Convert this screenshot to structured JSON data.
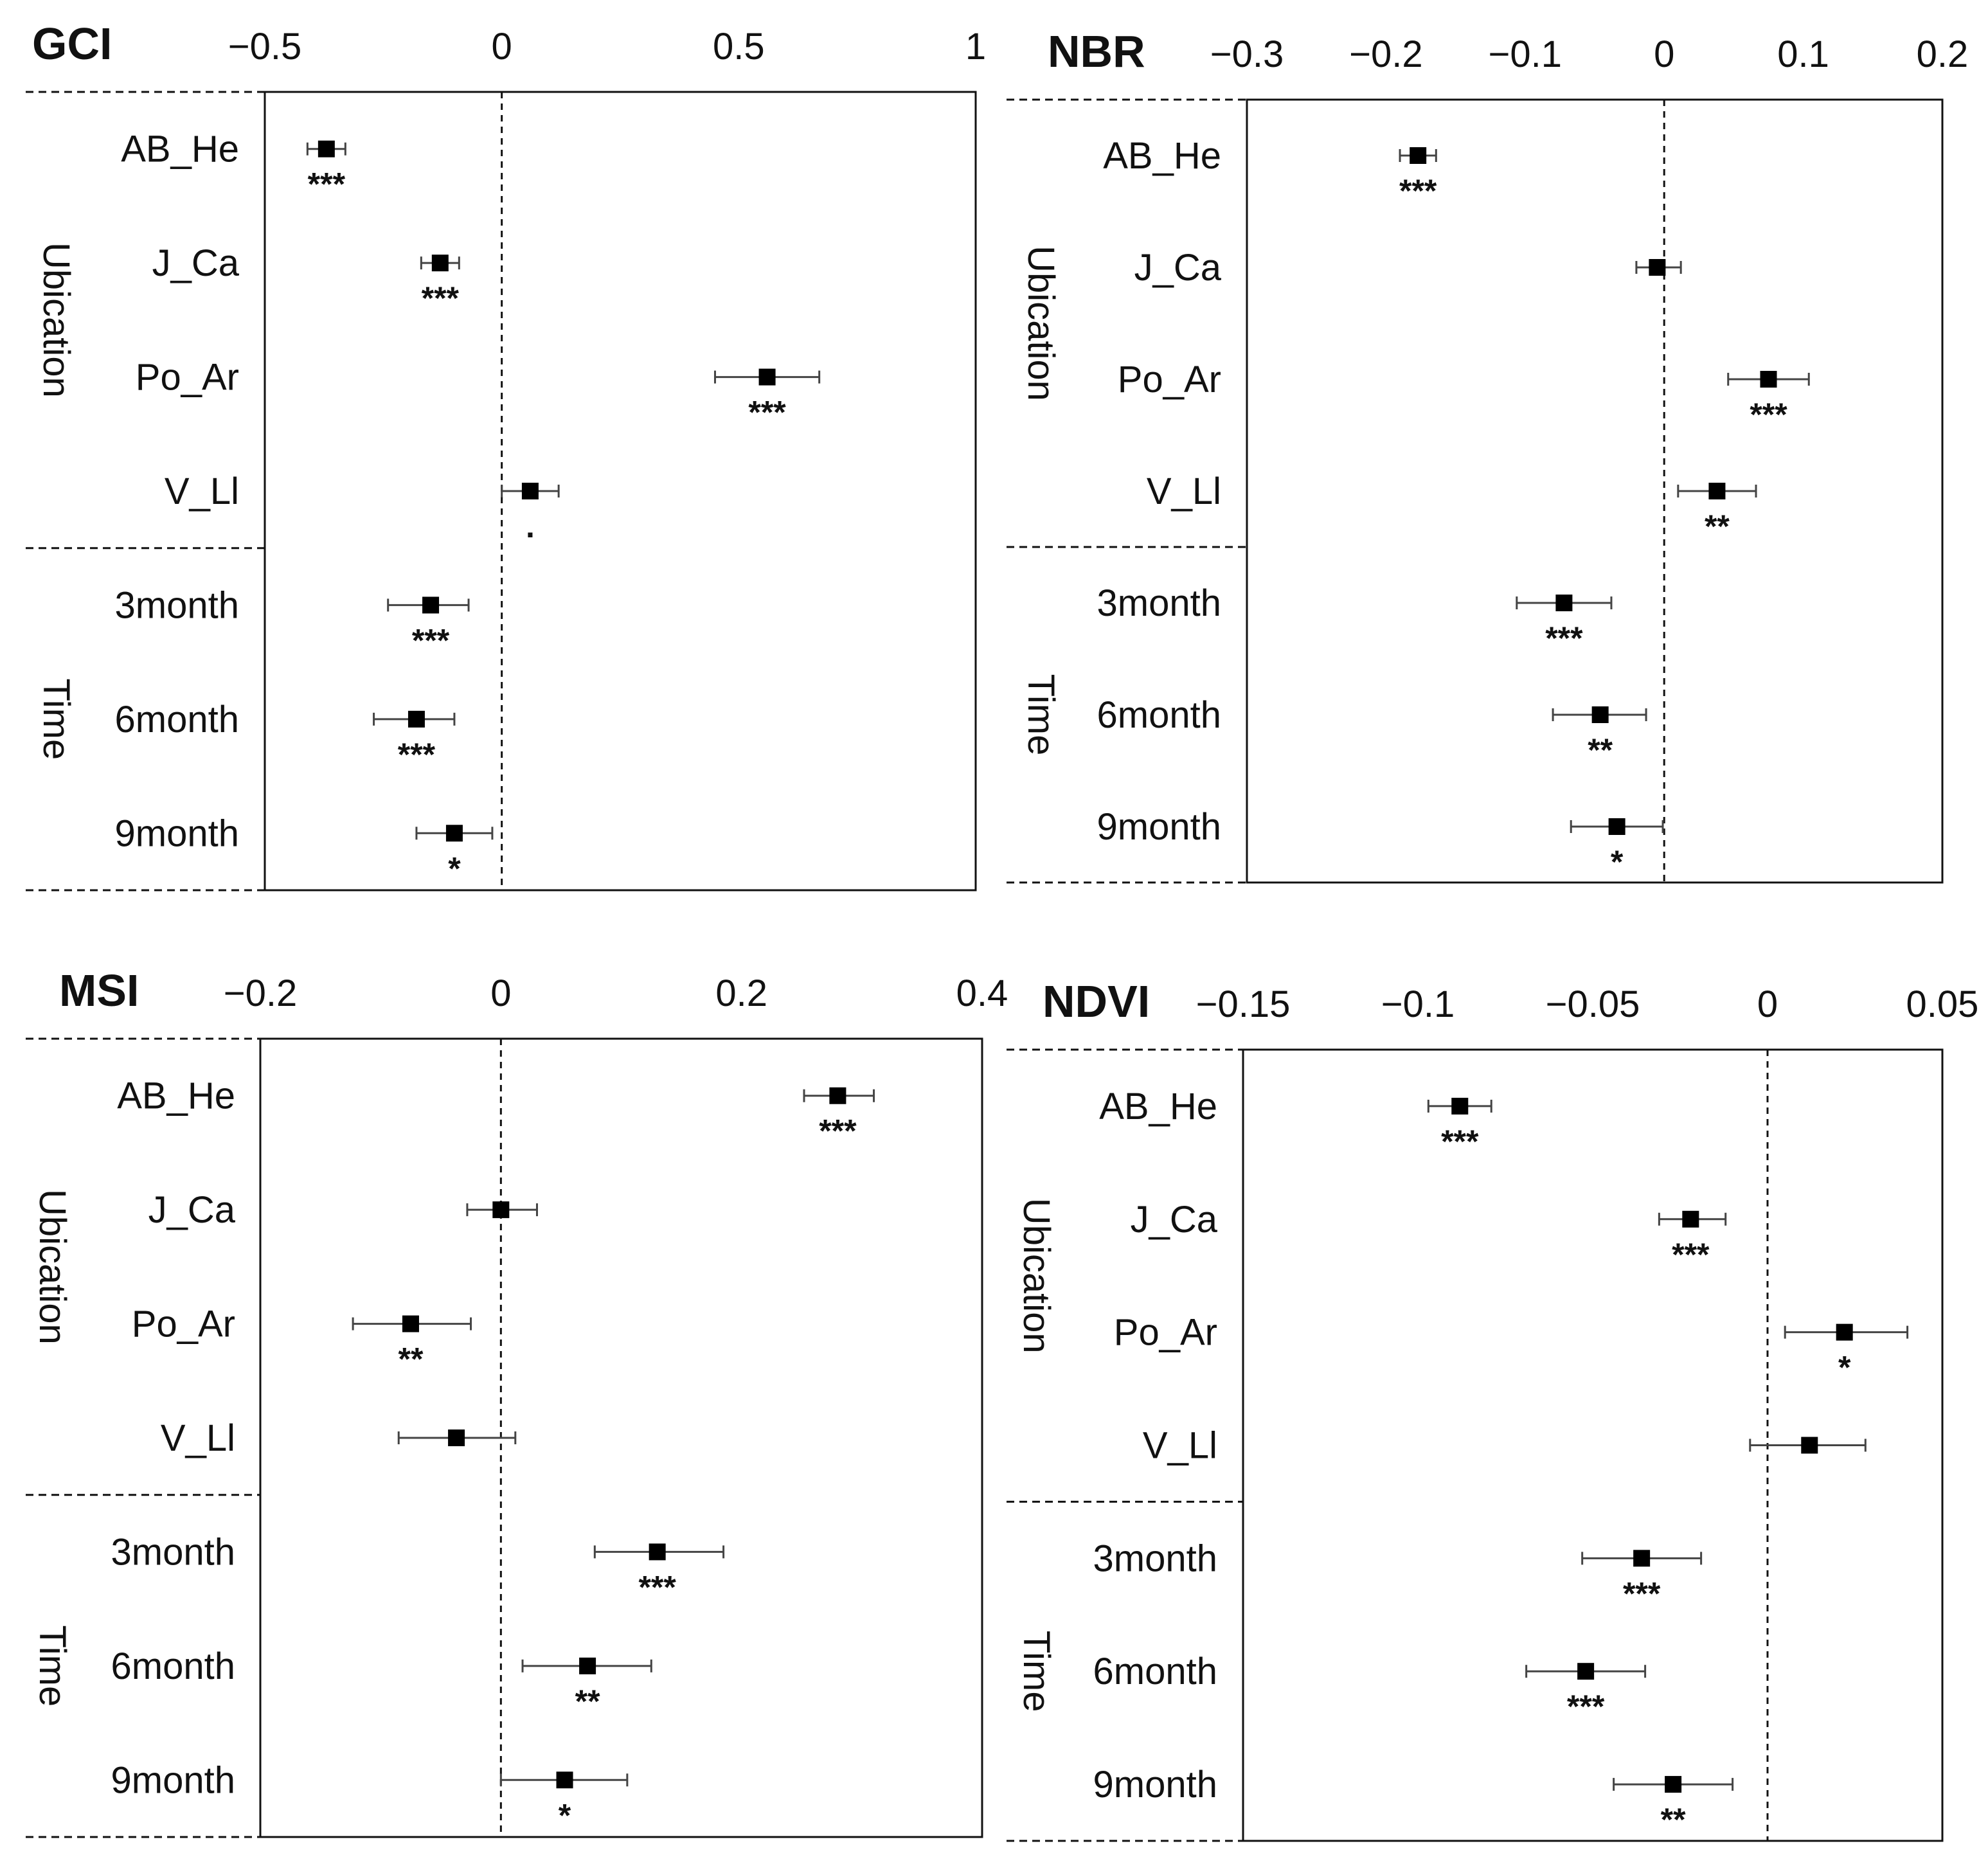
{
  "chart_data": [
    {
      "type": "forest",
      "title": "GCI",
      "xlim": [
        -0.5,
        1
      ],
      "ticks": [
        -0.5,
        0,
        0.5,
        1
      ],
      "tick_labels": [
        "−0.5",
        "0",
        "0.5",
        "1"
      ],
      "groups": [
        {
          "label": "Ubication",
          "count": 4
        },
        {
          "label": "Time",
          "count": 3
        }
      ],
      "categories": [
        "AB_He",
        "J_Ca",
        "Po_Ar",
        "V_Ll",
        "3month",
        "6month",
        "9month"
      ],
      "estimates": [
        -0.37,
        -0.13,
        0.56,
        0.06,
        -0.15,
        -0.18,
        -0.1
      ],
      "lower": [
        -0.41,
        -0.17,
        0.45,
        0.0,
        -0.24,
        -0.27,
        -0.18
      ],
      "upper": [
        -0.33,
        -0.09,
        0.67,
        0.12,
        -0.07,
        -0.1,
        -0.02
      ],
      "significance": [
        "***",
        "***",
        "***",
        ".",
        "***",
        "***",
        "*"
      ]
    },
    {
      "type": "forest",
      "title": "NBR",
      "xlim": [
        -0.3,
        0.2
      ],
      "ticks": [
        -0.3,
        -0.2,
        -0.1,
        0,
        0.1,
        0.2
      ],
      "tick_labels": [
        "−0.3",
        "−0.2",
        "−0.1",
        "0",
        "0.1",
        "0.2"
      ],
      "groups": [
        {
          "label": "Ubication",
          "count": 4
        },
        {
          "label": "Time",
          "count": 3
        }
      ],
      "categories": [
        "AB_He",
        "J_Ca",
        "Po_Ar",
        "V_Ll",
        "3month",
        "6month",
        "9month"
      ],
      "estimates": [
        -0.177,
        -0.005,
        0.075,
        0.038,
        -0.072,
        -0.046,
        -0.034
      ],
      "lower": [
        -0.19,
        -0.02,
        0.046,
        0.01,
        -0.106,
        -0.08,
        -0.067
      ],
      "upper": [
        -0.164,
        0.012,
        0.104,
        0.066,
        -0.038,
        -0.013,
        -0.001
      ],
      "significance": [
        "***",
        "",
        "***",
        "**",
        "***",
        "**",
        "*"
      ]
    },
    {
      "type": "forest",
      "title": "MSI",
      "xlim": [
        -0.2,
        0.4
      ],
      "ticks": [
        -0.2,
        0,
        0.2,
        0.4
      ],
      "tick_labels": [
        "−0.2",
        "0",
        "0.2",
        "0.4"
      ],
      "groups": [
        {
          "label": "Ubication",
          "count": 4
        },
        {
          "label": "Time",
          "count": 3
        }
      ],
      "categories": [
        "AB_He",
        "J_Ca",
        "Po_Ar",
        "V_Ll",
        "3month",
        "6month",
        "9month"
      ],
      "estimates": [
        0.28,
        0.0,
        -0.075,
        -0.037,
        0.13,
        0.072,
        0.053
      ],
      "lower": [
        0.252,
        -0.028,
        -0.123,
        -0.085,
        0.078,
        0.018,
        0.0
      ],
      "upper": [
        0.31,
        0.03,
        -0.025,
        0.012,
        0.185,
        0.125,
        0.105
      ],
      "significance": [
        "***",
        "",
        "**",
        "",
        "***",
        "**",
        "*"
      ]
    },
    {
      "type": "forest",
      "title": "NDVI",
      "xlim": [
        -0.15,
        0.05
      ],
      "ticks": [
        -0.15,
        -0.1,
        -0.05,
        0,
        0.05
      ],
      "tick_labels": [
        "−0.15",
        "−0.1",
        "−0.05",
        "0",
        "0.05"
      ],
      "groups": [
        {
          "label": "Ubication",
          "count": 4
        },
        {
          "label": "Time",
          "count": 3
        }
      ],
      "categories": [
        "AB_He",
        "J_Ca",
        "Po_Ar",
        "V_Ll",
        "3month",
        "6month",
        "9month"
      ],
      "estimates": [
        -0.088,
        -0.022,
        0.022,
        0.012,
        -0.036,
        -0.052,
        -0.027
      ],
      "lower": [
        -0.097,
        -0.031,
        0.005,
        -0.005,
        -0.053,
        -0.069,
        -0.044
      ],
      "upper": [
        -0.079,
        -0.012,
        0.04,
        0.028,
        -0.019,
        -0.035,
        -0.01
      ],
      "significance": [
        "***",
        "***",
        "*",
        "",
        "***",
        "***",
        "**"
      ]
    }
  ]
}
